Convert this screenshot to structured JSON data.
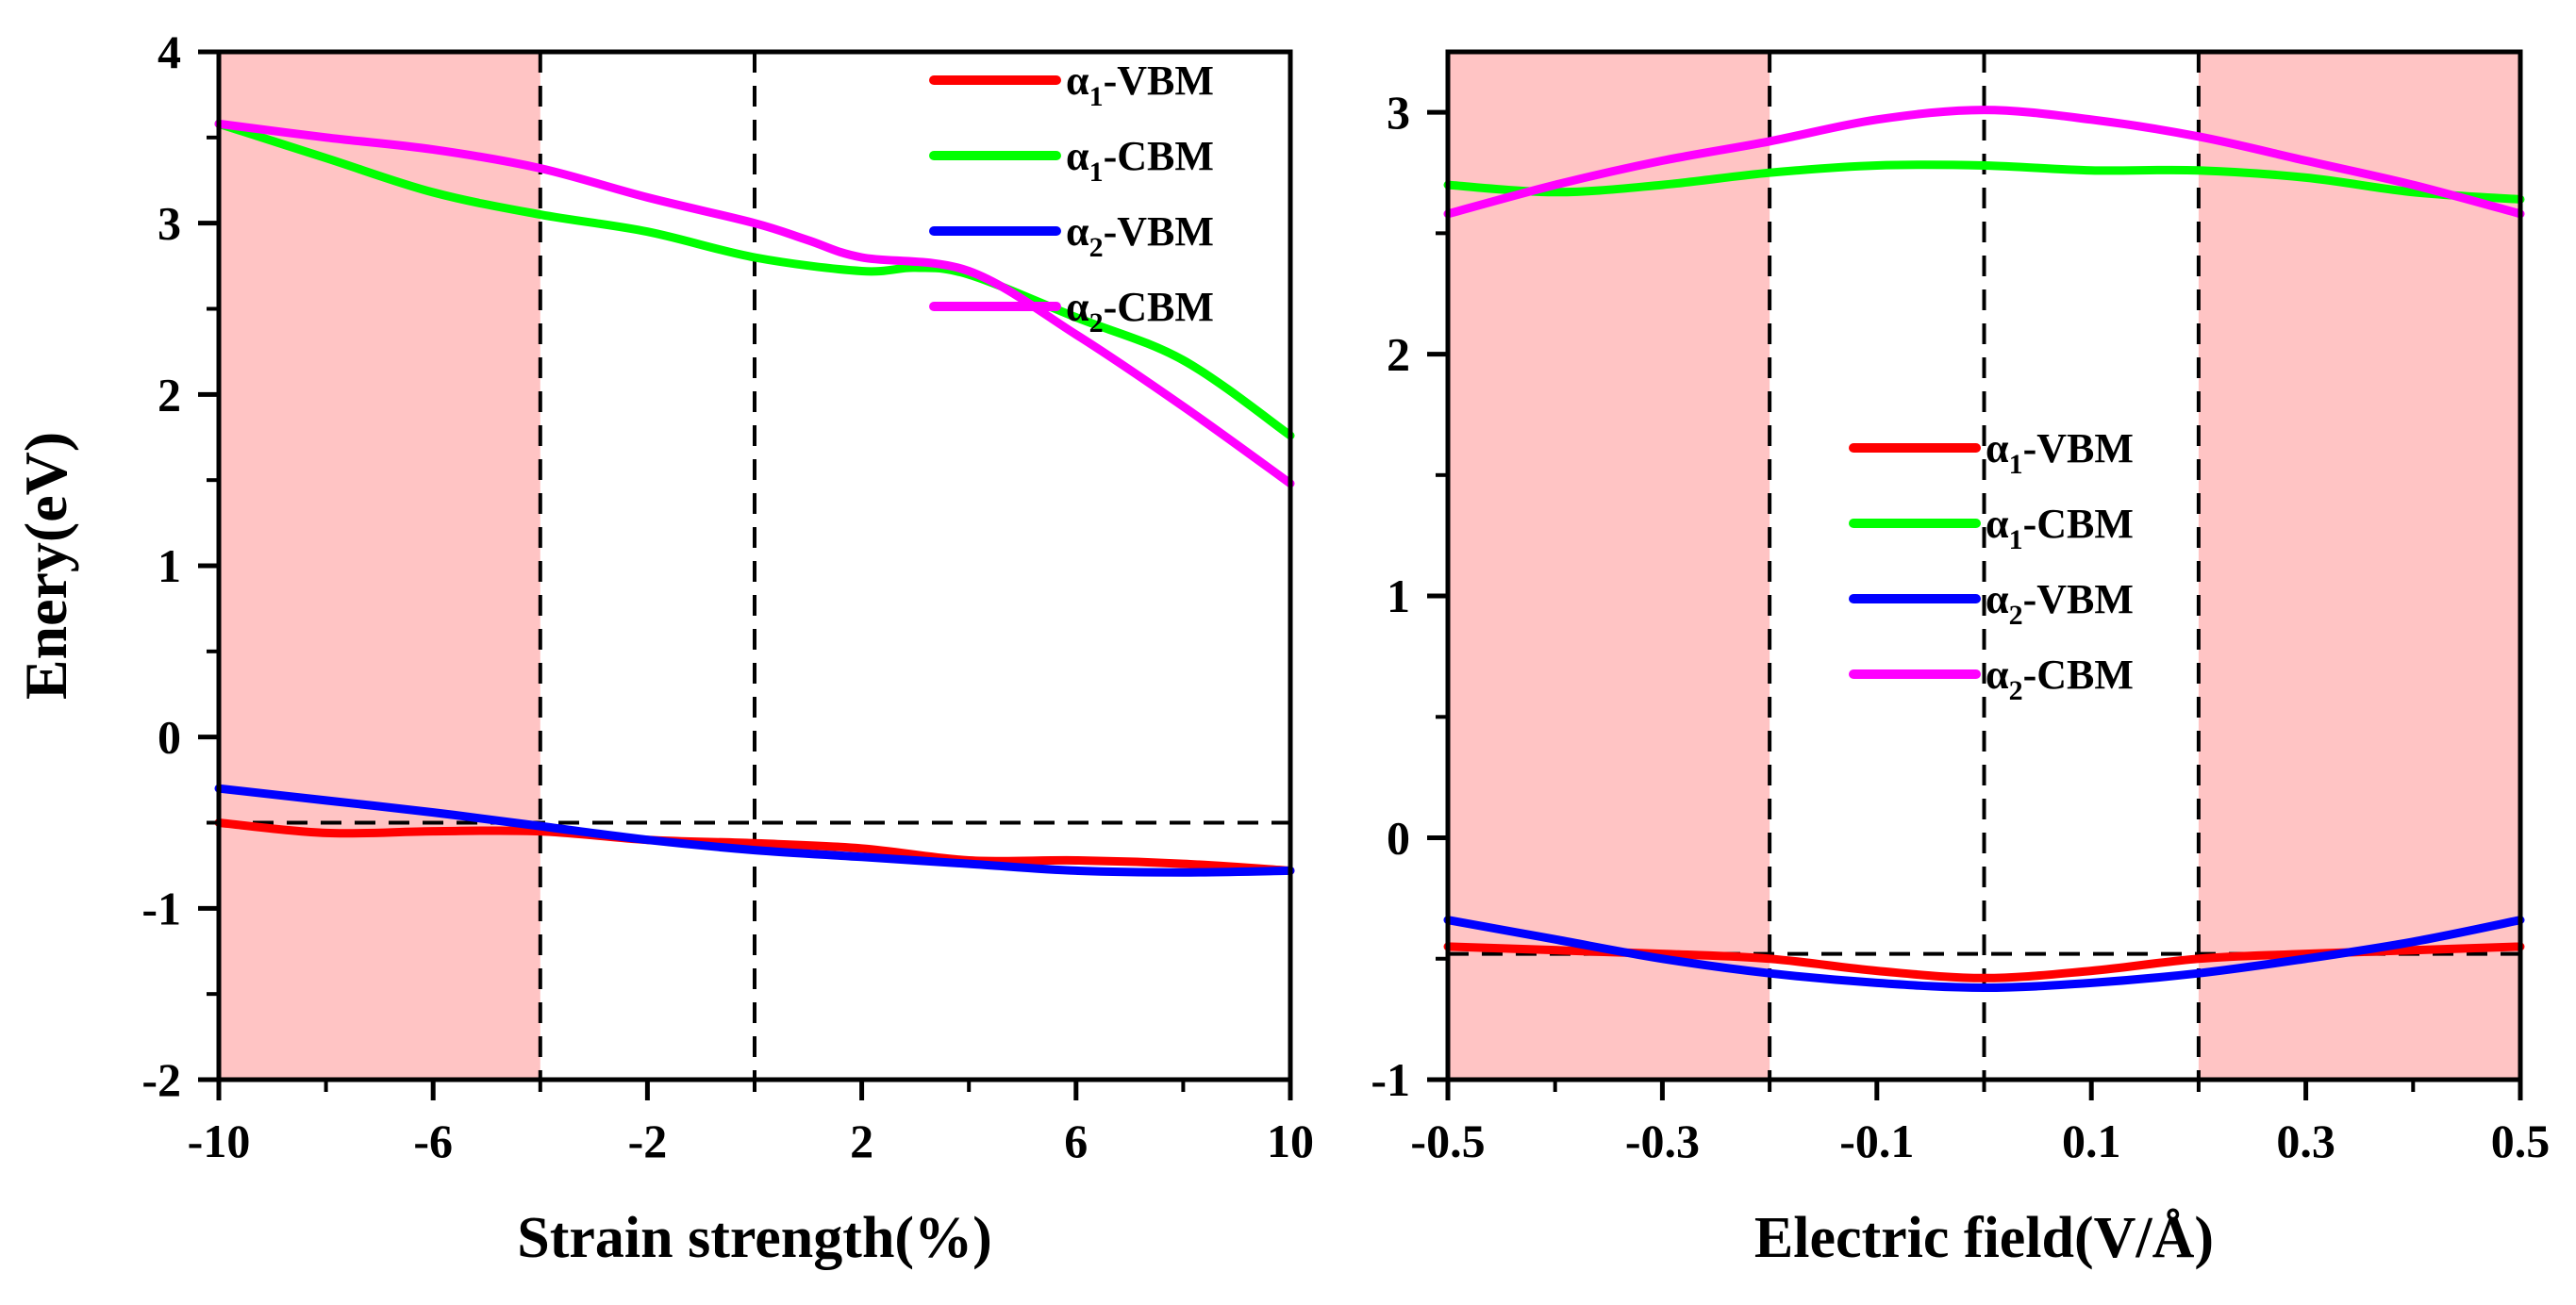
{
  "chart_data": [
    {
      "type": "line",
      "xlabel": "Strain strength(%)",
      "ylabel": "Enery(eV)",
      "xlim": [
        -10,
        10
      ],
      "ylim": [
        -2,
        4
      ],
      "xticks": [
        "-10",
        "-6",
        "-2",
        "2",
        "6",
        "10"
      ],
      "yticks": [
        "-2",
        "-1",
        "0",
        "1",
        "2",
        "3",
        "4"
      ],
      "shaded_regions": [
        [
          -10,
          -4
        ]
      ],
      "vlines": [
        -4,
        0
      ],
      "hlines": [
        -0.5
      ],
      "legend_position": "top-right",
      "series": [
        {
          "name": "α1-VBM",
          "legend_base": "α",
          "legend_sub": "1",
          "legend_suffix": "-VBM",
          "color": "#ff0000",
          "x": [
            -10,
            -8,
            -6,
            -4,
            -2,
            0,
            2,
            4,
            6,
            8,
            10
          ],
          "y": [
            -0.5,
            -0.56,
            -0.55,
            -0.55,
            -0.6,
            -0.62,
            -0.65,
            -0.72,
            -0.72,
            -0.74,
            -0.78
          ]
        },
        {
          "name": "α1-CBM",
          "legend_base": "α",
          "legend_sub": "1",
          "legend_suffix": "-CBM",
          "color": "#00ff00",
          "x": [
            -10,
            -8,
            -6,
            -4,
            -2,
            0,
            2,
            3,
            4,
            6,
            8,
            10
          ],
          "y": [
            3.58,
            3.38,
            3.18,
            3.05,
            2.95,
            2.8,
            2.72,
            2.74,
            2.7,
            2.45,
            2.2,
            1.76
          ]
        },
        {
          "name": "α2-VBM",
          "legend_base": "α",
          "legend_sub": "2",
          "legend_suffix": "-VBM",
          "color": "#0000ff",
          "x": [
            -10,
            -8,
            -6,
            -4,
            -2,
            0,
            2,
            4,
            6,
            8,
            10
          ],
          "y": [
            -0.3,
            -0.37,
            -0.44,
            -0.52,
            -0.6,
            -0.66,
            -0.7,
            -0.74,
            -0.78,
            -0.79,
            -0.78
          ]
        },
        {
          "name": "α2-CBM",
          "legend_base": "α",
          "legend_sub": "2",
          "legend_suffix": "-CBM",
          "color": "#ff00ff",
          "x": [
            -10,
            -8,
            -6,
            -4,
            -2,
            0,
            1,
            2,
            4,
            6,
            8,
            10
          ],
          "y": [
            3.58,
            3.5,
            3.43,
            3.32,
            3.15,
            3.0,
            2.9,
            2.8,
            2.72,
            2.35,
            1.93,
            1.48
          ]
        }
      ]
    },
    {
      "type": "line",
      "xlabel": "Electric field(V/Å)",
      "ylabel": "",
      "xlim": [
        -0.5,
        0.5
      ],
      "ylim": [
        -1,
        3.25
      ],
      "xticks": [
        "-0.5",
        "-0.3",
        "-0.1",
        "0.1",
        "0.3",
        "0.5"
      ],
      "yticks": [
        "-1",
        "0",
        "1",
        "2",
        "3"
      ],
      "shaded_regions": [
        [
          -0.5,
          -0.2
        ],
        [
          0.2,
          0.5
        ]
      ],
      "vlines": [
        -0.2,
        0,
        0.2
      ],
      "hlines": [
        -0.48
      ],
      "legend_position": "center",
      "series": [
        {
          "name": "α1-VBM",
          "legend_base": "α",
          "legend_sub": "1",
          "legend_suffix": "-VBM",
          "color": "#ff0000",
          "x": [
            -0.5,
            -0.3,
            -0.2,
            -0.1,
            0,
            0.1,
            0.2,
            0.3,
            0.5
          ],
          "y": [
            -0.45,
            -0.48,
            -0.5,
            -0.55,
            -0.58,
            -0.55,
            -0.5,
            -0.48,
            -0.45
          ]
        },
        {
          "name": "α1-CBM",
          "legend_base": "α",
          "legend_sub": "1",
          "legend_suffix": "-CBM",
          "color": "#00ff00",
          "x": [
            -0.5,
            -0.4,
            -0.3,
            -0.2,
            -0.1,
            0,
            0.1,
            0.2,
            0.3,
            0.4,
            0.5
          ],
          "y": [
            2.7,
            2.67,
            2.7,
            2.75,
            2.78,
            2.78,
            2.76,
            2.76,
            2.73,
            2.67,
            2.64
          ]
        },
        {
          "name": "α2-VBM",
          "legend_base": "α",
          "legend_sub": "2",
          "legend_suffix": "-VBM",
          "color": "#0000ff",
          "x": [
            -0.5,
            -0.4,
            -0.3,
            -0.2,
            -0.1,
            0,
            0.1,
            0.2,
            0.3,
            0.4,
            0.5
          ],
          "y": [
            -0.34,
            -0.42,
            -0.5,
            -0.56,
            -0.6,
            -0.62,
            -0.6,
            -0.56,
            -0.5,
            -0.43,
            -0.34
          ]
        },
        {
          "name": "α2-CBM",
          "legend_base": "α",
          "legend_sub": "2",
          "legend_suffix": "-CBM",
          "color": "#ff00ff",
          "x": [
            -0.5,
            -0.4,
            -0.3,
            -0.2,
            -0.1,
            0,
            0.1,
            0.2,
            0.3,
            0.4,
            0.5
          ],
          "y": [
            2.58,
            2.7,
            2.8,
            2.88,
            2.97,
            3.01,
            2.97,
            2.9,
            2.8,
            2.7,
            2.58
          ]
        }
      ]
    }
  ]
}
